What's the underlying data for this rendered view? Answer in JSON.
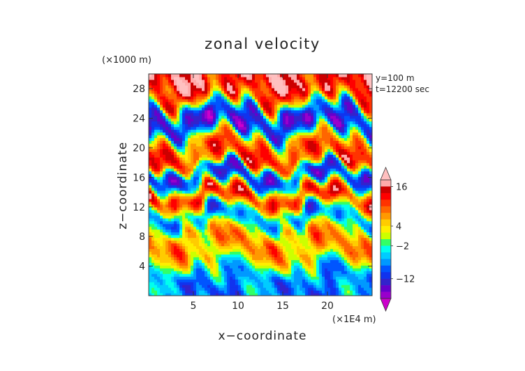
{
  "chart_data": {
    "type": "heatmap",
    "title": "zonal velocity",
    "xlabel": "x−coordinate",
    "ylabel": "z−coordinate",
    "x_unit": "(×1E4 m)",
    "y_unit": "(×1000 m)",
    "annotations": [
      "y=100 m",
      "t=12200 sec"
    ],
    "xlim": [
      0,
      25
    ],
    "ylim": [
      0,
      30
    ],
    "xticks": [
      5,
      10,
      15,
      20
    ],
    "yticks": [
      4,
      8,
      12,
      16,
      20,
      24,
      28
    ],
    "colorbar": {
      "tick_labels": [
        "16",
        "4",
        "−2",
        "−12"
      ],
      "tick_values": [
        16,
        4,
        -2,
        -12
      ],
      "levels": [
        -18,
        -16,
        -14,
        -12,
        -10,
        -8,
        -6,
        -4,
        -2,
        0,
        2,
        4,
        6,
        8,
        10,
        12,
        14,
        16,
        18
      ],
      "colors": [
        "#cc00cc",
        "#9900cc",
        "#6600cc",
        "#3322cc",
        "#1133ee",
        "#0055ff",
        "#0099ff",
        "#00ccff",
        "#00ffee",
        "#33ff66",
        "#ccff00",
        "#ffee00",
        "#ffcc00",
        "#ff9900",
        "#ff6600",
        "#ff3300",
        "#ff0000",
        "#cc0000",
        "#ffaaaa",
        "#ffc0c0"
      ],
      "extend": "both"
    },
    "field_description_layers": [
      {
        "z_range": [
          26,
          30
        ],
        "value_approx": 14
      },
      {
        "z_range": [
          22,
          26
        ],
        "value_approx": -14
      },
      {
        "z_range": [
          18,
          22
        ],
        "value_approx": 10
      },
      {
        "z_range": [
          15,
          17
        ],
        "value_approx": -12
      },
      {
        "z_range": [
          12,
          15
        ],
        "value_approx": 12
      },
      {
        "z_range": [
          10,
          12
        ],
        "value_approx": -10
      },
      {
        "z_range": [
          4,
          10
        ],
        "value_approx": 6
      },
      {
        "z_range": [
          0,
          4
        ],
        "value_approx": -8
      }
    ]
  }
}
